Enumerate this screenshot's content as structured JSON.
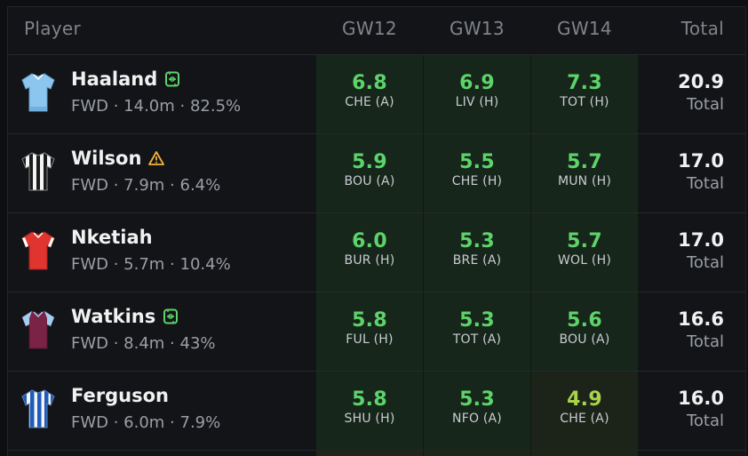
{
  "header": {
    "player_label": "Player",
    "gameweeks": [
      "GW12",
      "GW13",
      "GW14"
    ],
    "total_label": "Total"
  },
  "colors": {
    "points_green": "#5ed36a",
    "points_yellow_green": "#a9d24d",
    "cell_bg": "#16261b",
    "warning": "#f2b33d"
  },
  "players": [
    {
      "name": "Haaland",
      "flag": "substitute-icon",
      "meta": "FWD · 14.0m · 82.5%",
      "jersey": "man-city-jersey-icon",
      "gw": [
        {
          "pts": "6.8",
          "fix": "CHE (A)"
        },
        {
          "pts": "6.9",
          "fix": "LIV (H)"
        },
        {
          "pts": "7.3",
          "fix": "TOT (H)"
        }
      ],
      "total": "20.9",
      "total_label": "Total"
    },
    {
      "name": "Wilson",
      "flag": "warning-icon",
      "meta": "FWD · 7.9m · 6.4%",
      "jersey": "newcastle-jersey-icon",
      "gw": [
        {
          "pts": "5.9",
          "fix": "BOU (A)"
        },
        {
          "pts": "5.5",
          "fix": "CHE (H)"
        },
        {
          "pts": "5.7",
          "fix": "MUN (H)"
        }
      ],
      "total": "17.0",
      "total_label": "Total"
    },
    {
      "name": "Nketiah",
      "flag": "",
      "meta": "FWD · 5.7m · 10.4%",
      "jersey": "arsenal-jersey-icon",
      "gw": [
        {
          "pts": "6.0",
          "fix": "BUR (H)"
        },
        {
          "pts": "5.3",
          "fix": "BRE (A)"
        },
        {
          "pts": "5.7",
          "fix": "WOL (H)"
        }
      ],
      "total": "17.0",
      "total_label": "Total"
    },
    {
      "name": "Watkins",
      "flag": "substitute-icon",
      "meta": "FWD · 8.4m · 43%",
      "jersey": "aston-villa-jersey-icon",
      "gw": [
        {
          "pts": "5.8",
          "fix": "FUL (H)"
        },
        {
          "pts": "5.3",
          "fix": "TOT (A)"
        },
        {
          "pts": "5.6",
          "fix": "BOU (A)"
        }
      ],
      "total": "16.6",
      "total_label": "Total"
    },
    {
      "name": "Ferguson",
      "flag": "",
      "meta": "FWD · 6.0m · 7.9%",
      "jersey": "brighton-jersey-icon",
      "gw": [
        {
          "pts": "5.8",
          "fix": "SHU (H)"
        },
        {
          "pts": "5.3",
          "fix": "NFO (A)"
        },
        {
          "pts": "4.9",
          "fix": "CHE (A)"
        }
      ],
      "total": "16.0",
      "total_label": "Total"
    }
  ]
}
